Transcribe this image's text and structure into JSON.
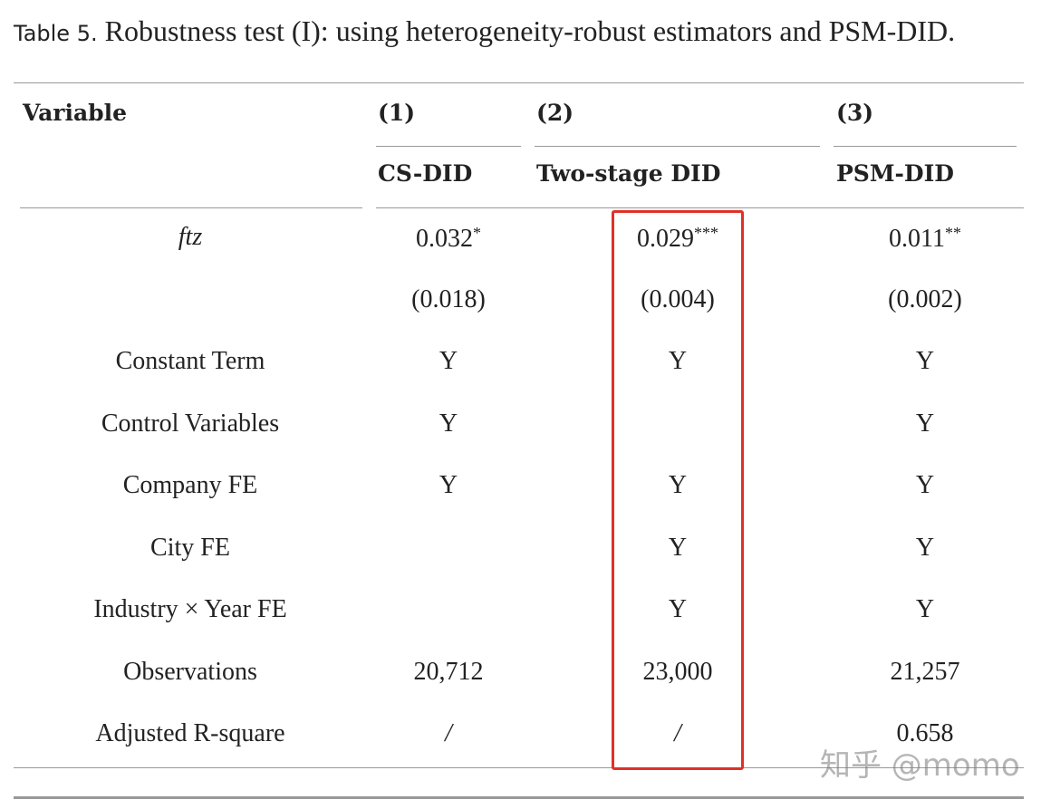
{
  "caption": {
    "label": "Table 5.",
    "text": "Robustness test (I): using heterogeneity-robust estimators and PSM-DID."
  },
  "table": {
    "header": {
      "variable": "Variable",
      "columns": [
        {
          "number": "(1)",
          "name": "CS-DID"
        },
        {
          "number": "(2)",
          "name": "Two-stage DID"
        },
        {
          "number": "(3)",
          "name": "PSM-DID"
        }
      ]
    },
    "rows": [
      [
        {
          "text": "ftz",
          "italic": true
        },
        {
          "text": "0.032",
          "stars": "*"
        },
        {
          "text": "0.029",
          "stars": "***"
        },
        {
          "text": "0.011",
          "stars": "**"
        }
      ],
      [
        null,
        {
          "text": "(0.018)"
        },
        {
          "text": "(0.004)"
        },
        {
          "text": "(0.002)"
        }
      ],
      [
        {
          "text": "Constant Term"
        },
        {
          "text": "Y"
        },
        {
          "text": "Y"
        },
        {
          "text": "Y"
        }
      ],
      [
        {
          "text": "Control Variables"
        },
        {
          "text": "Y"
        },
        null,
        {
          "text": "Y"
        }
      ],
      [
        {
          "text": "Company FE"
        },
        {
          "text": "Y"
        },
        {
          "text": "Y"
        },
        {
          "text": "Y"
        }
      ],
      [
        {
          "text": "City FE"
        },
        null,
        {
          "text": "Y"
        },
        {
          "text": "Y"
        }
      ],
      [
        {
          "text": "Industry × Year FE"
        },
        null,
        {
          "text": "Y"
        },
        {
          "text": "Y"
        }
      ],
      [
        {
          "text": "Observations"
        },
        {
          "text": "20,712"
        },
        {
          "text": "23,000"
        },
        {
          "text": "21,257"
        }
      ],
      [
        {
          "text": "Adjusted R-square"
        },
        {
          "text": "/",
          "italic": true
        },
        {
          "text": "/",
          "italic": true
        },
        {
          "text": "0.658"
        }
      ]
    ]
  },
  "watermark": "知乎 @momo"
}
